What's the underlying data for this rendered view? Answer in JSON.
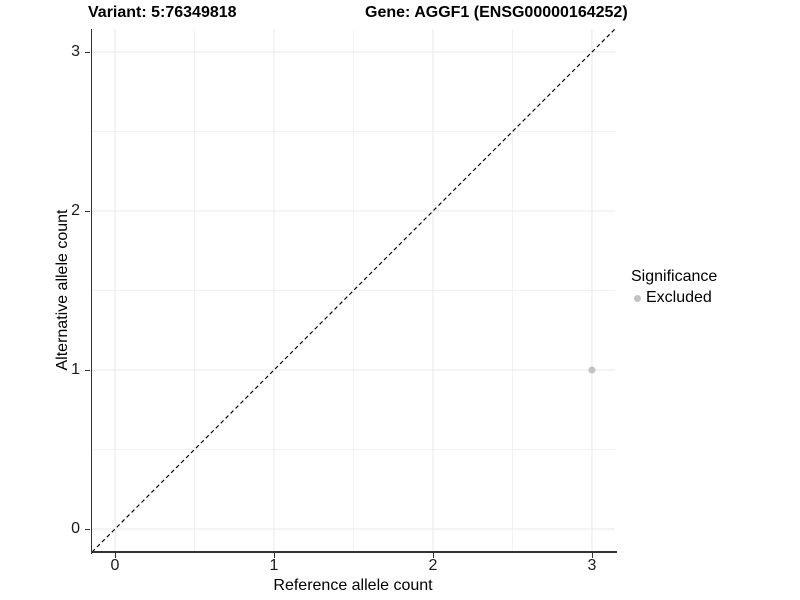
{
  "titles": {
    "left": "Variant: 5:76349818",
    "right": "Gene: AGGF1 (ENSG00000164252)"
  },
  "chart_data": {
    "type": "scatter",
    "title": "Variant: 5:76349818    Gene: AGGF1 (ENSG00000164252)",
    "xlabel": "Reference allele count",
    "ylabel": "Alternative allele count",
    "xlim": [
      -0.145,
      3.145
    ],
    "ylim": [
      -0.145,
      3.145
    ],
    "x_ticks": [
      0,
      1,
      2,
      3
    ],
    "y_ticks": [
      0,
      1,
      2,
      3
    ],
    "minor_breaks": [
      0.5,
      1.5,
      2.5
    ],
    "grid": true,
    "points": [
      {
        "x": 3,
        "y": 1,
        "series": "Excluded",
        "color": "#c2c2c2",
        "radius": 3.5
      }
    ],
    "abline": {
      "slope": 1,
      "intercept": 0,
      "style": "dashed",
      "color": "#000000",
      "dash": "4 3",
      "width": 1.2
    },
    "legend": {
      "title": "Significance",
      "position": "right",
      "items": [
        {
          "label": "Excluded",
          "color": "#c2c2c2"
        }
      ]
    },
    "colors": {
      "grid_major": "#e8e8e8",
      "grid_minor": "#f2f2f2",
      "axis": "#333333",
      "background": "#ffffff"
    }
  }
}
